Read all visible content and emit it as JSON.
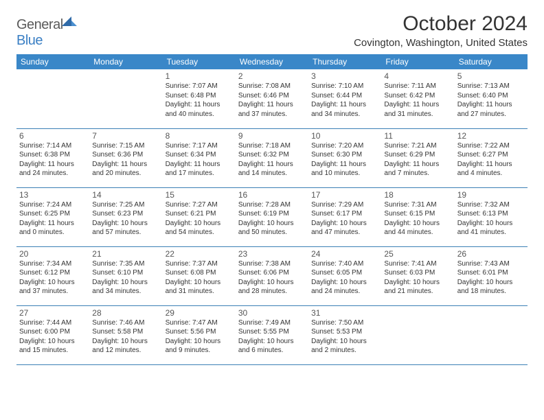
{
  "brand": {
    "general": "General",
    "blue": "Blue"
  },
  "title": "October 2024",
  "location": "Covington, Washington, United States",
  "colors": {
    "header_bg": "#3a87c8",
    "header_text": "#ffffff",
    "row_border": "#3a7fb5",
    "text": "#333333",
    "daynum": "#555555",
    "logo_gray": "#5a5a5a",
    "logo_blue": "#3a7fc4",
    "background": "#ffffff"
  },
  "typography": {
    "title_fontsize": 30,
    "location_fontsize": 15,
    "dayheader_fontsize": 12,
    "daynum_fontsize": 12,
    "cell_fontsize": 10
  },
  "layout": {
    "columns": 7,
    "rows": 5
  },
  "day_names": [
    "Sunday",
    "Monday",
    "Tuesday",
    "Wednesday",
    "Thursday",
    "Friday",
    "Saturday"
  ],
  "weeks": [
    [
      null,
      null,
      {
        "n": "1",
        "sr": "Sunrise: 7:07 AM",
        "ss": "Sunset: 6:48 PM",
        "d1": "Daylight: 11 hours",
        "d2": "and 40 minutes."
      },
      {
        "n": "2",
        "sr": "Sunrise: 7:08 AM",
        "ss": "Sunset: 6:46 PM",
        "d1": "Daylight: 11 hours",
        "d2": "and 37 minutes."
      },
      {
        "n": "3",
        "sr": "Sunrise: 7:10 AM",
        "ss": "Sunset: 6:44 PM",
        "d1": "Daylight: 11 hours",
        "d2": "and 34 minutes."
      },
      {
        "n": "4",
        "sr": "Sunrise: 7:11 AM",
        "ss": "Sunset: 6:42 PM",
        "d1": "Daylight: 11 hours",
        "d2": "and 31 minutes."
      },
      {
        "n": "5",
        "sr": "Sunrise: 7:13 AM",
        "ss": "Sunset: 6:40 PM",
        "d1": "Daylight: 11 hours",
        "d2": "and 27 minutes."
      }
    ],
    [
      {
        "n": "6",
        "sr": "Sunrise: 7:14 AM",
        "ss": "Sunset: 6:38 PM",
        "d1": "Daylight: 11 hours",
        "d2": "and 24 minutes."
      },
      {
        "n": "7",
        "sr": "Sunrise: 7:15 AM",
        "ss": "Sunset: 6:36 PM",
        "d1": "Daylight: 11 hours",
        "d2": "and 20 minutes."
      },
      {
        "n": "8",
        "sr": "Sunrise: 7:17 AM",
        "ss": "Sunset: 6:34 PM",
        "d1": "Daylight: 11 hours",
        "d2": "and 17 minutes."
      },
      {
        "n": "9",
        "sr": "Sunrise: 7:18 AM",
        "ss": "Sunset: 6:32 PM",
        "d1": "Daylight: 11 hours",
        "d2": "and 14 minutes."
      },
      {
        "n": "10",
        "sr": "Sunrise: 7:20 AM",
        "ss": "Sunset: 6:30 PM",
        "d1": "Daylight: 11 hours",
        "d2": "and 10 minutes."
      },
      {
        "n": "11",
        "sr": "Sunrise: 7:21 AM",
        "ss": "Sunset: 6:29 PM",
        "d1": "Daylight: 11 hours",
        "d2": "and 7 minutes."
      },
      {
        "n": "12",
        "sr": "Sunrise: 7:22 AM",
        "ss": "Sunset: 6:27 PM",
        "d1": "Daylight: 11 hours",
        "d2": "and 4 minutes."
      }
    ],
    [
      {
        "n": "13",
        "sr": "Sunrise: 7:24 AM",
        "ss": "Sunset: 6:25 PM",
        "d1": "Daylight: 11 hours",
        "d2": "and 0 minutes."
      },
      {
        "n": "14",
        "sr": "Sunrise: 7:25 AM",
        "ss": "Sunset: 6:23 PM",
        "d1": "Daylight: 10 hours",
        "d2": "and 57 minutes."
      },
      {
        "n": "15",
        "sr": "Sunrise: 7:27 AM",
        "ss": "Sunset: 6:21 PM",
        "d1": "Daylight: 10 hours",
        "d2": "and 54 minutes."
      },
      {
        "n": "16",
        "sr": "Sunrise: 7:28 AM",
        "ss": "Sunset: 6:19 PM",
        "d1": "Daylight: 10 hours",
        "d2": "and 50 minutes."
      },
      {
        "n": "17",
        "sr": "Sunrise: 7:29 AM",
        "ss": "Sunset: 6:17 PM",
        "d1": "Daylight: 10 hours",
        "d2": "and 47 minutes."
      },
      {
        "n": "18",
        "sr": "Sunrise: 7:31 AM",
        "ss": "Sunset: 6:15 PM",
        "d1": "Daylight: 10 hours",
        "d2": "and 44 minutes."
      },
      {
        "n": "19",
        "sr": "Sunrise: 7:32 AM",
        "ss": "Sunset: 6:13 PM",
        "d1": "Daylight: 10 hours",
        "d2": "and 41 minutes."
      }
    ],
    [
      {
        "n": "20",
        "sr": "Sunrise: 7:34 AM",
        "ss": "Sunset: 6:12 PM",
        "d1": "Daylight: 10 hours",
        "d2": "and 37 minutes."
      },
      {
        "n": "21",
        "sr": "Sunrise: 7:35 AM",
        "ss": "Sunset: 6:10 PM",
        "d1": "Daylight: 10 hours",
        "d2": "and 34 minutes."
      },
      {
        "n": "22",
        "sr": "Sunrise: 7:37 AM",
        "ss": "Sunset: 6:08 PM",
        "d1": "Daylight: 10 hours",
        "d2": "and 31 minutes."
      },
      {
        "n": "23",
        "sr": "Sunrise: 7:38 AM",
        "ss": "Sunset: 6:06 PM",
        "d1": "Daylight: 10 hours",
        "d2": "and 28 minutes."
      },
      {
        "n": "24",
        "sr": "Sunrise: 7:40 AM",
        "ss": "Sunset: 6:05 PM",
        "d1": "Daylight: 10 hours",
        "d2": "and 24 minutes."
      },
      {
        "n": "25",
        "sr": "Sunrise: 7:41 AM",
        "ss": "Sunset: 6:03 PM",
        "d1": "Daylight: 10 hours",
        "d2": "and 21 minutes."
      },
      {
        "n": "26",
        "sr": "Sunrise: 7:43 AM",
        "ss": "Sunset: 6:01 PM",
        "d1": "Daylight: 10 hours",
        "d2": "and 18 minutes."
      }
    ],
    [
      {
        "n": "27",
        "sr": "Sunrise: 7:44 AM",
        "ss": "Sunset: 6:00 PM",
        "d1": "Daylight: 10 hours",
        "d2": "and 15 minutes."
      },
      {
        "n": "28",
        "sr": "Sunrise: 7:46 AM",
        "ss": "Sunset: 5:58 PM",
        "d1": "Daylight: 10 hours",
        "d2": "and 12 minutes."
      },
      {
        "n": "29",
        "sr": "Sunrise: 7:47 AM",
        "ss": "Sunset: 5:56 PM",
        "d1": "Daylight: 10 hours",
        "d2": "and 9 minutes."
      },
      {
        "n": "30",
        "sr": "Sunrise: 7:49 AM",
        "ss": "Sunset: 5:55 PM",
        "d1": "Daylight: 10 hours",
        "d2": "and 6 minutes."
      },
      {
        "n": "31",
        "sr": "Sunrise: 7:50 AM",
        "ss": "Sunset: 5:53 PM",
        "d1": "Daylight: 10 hours",
        "d2": "and 2 minutes."
      },
      null,
      null
    ]
  ]
}
